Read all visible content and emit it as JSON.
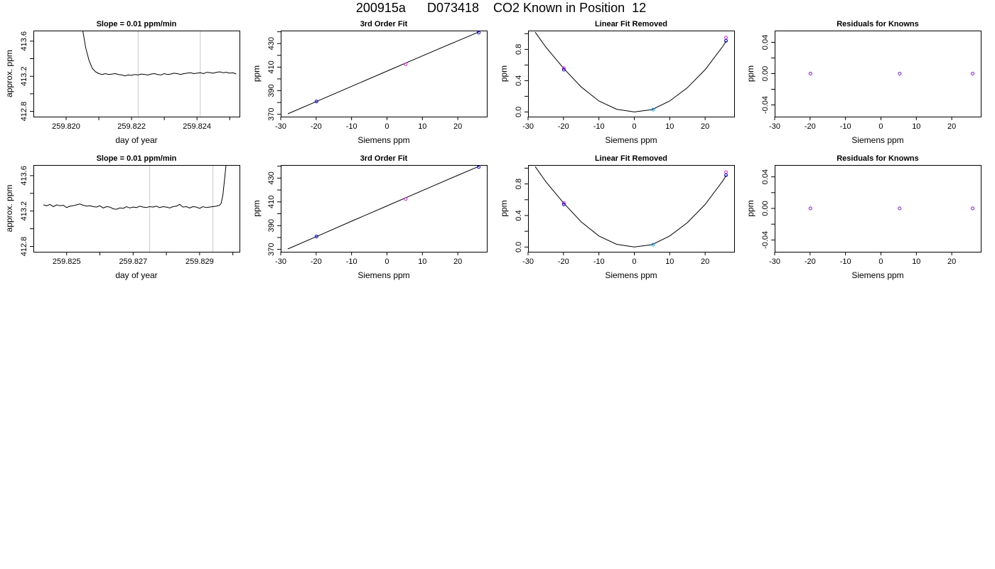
{
  "title": "200915a      D073418    CO2 Known in Position  12",
  "chart_data": [
    {
      "type": "line",
      "title": "Slope =  0.01  ppm/min",
      "xlabel": "day of year",
      "ylabel": "approx. ppm",
      "xlim": [
        259.819,
        259.8253
      ],
      "ylim": [
        412.74,
        413.72
      ],
      "xticks": [
        259.82,
        259.821,
        259.822,
        259.823,
        259.824,
        259.825
      ],
      "xticklabels": [
        "259.820",
        "",
        "259.822",
        "",
        "259.824",
        ""
      ],
      "yticks": [
        412.8,
        413.0,
        413.2,
        413.4,
        413.6
      ],
      "yticklabels": [
        "412.8",
        "",
        "413.2",
        "",
        "413.6"
      ],
      "vlines": [
        259.8222,
        259.8241
      ],
      "series": [
        {
          "x": [
            259.8205,
            259.8206,
            259.8207,
            259.8208,
            259.8209,
            259.821,
            259.82105,
            259.8211,
            259.8212,
            259.8213,
            259.8214,
            259.8215,
            259.8216,
            259.8217,
            259.8218,
            259.8219,
            259.822,
            259.8221,
            259.8222,
            259.8223,
            259.8224,
            259.8225,
            259.8226,
            259.8227,
            259.8228,
            259.8229,
            259.823,
            259.8231,
            259.8232,
            259.8233,
            259.8234,
            259.8235,
            259.8236,
            259.8237,
            259.8238,
            259.8239,
            259.824,
            259.8241,
            259.8242,
            259.8243,
            259.8244,
            259.8245,
            259.8246,
            259.8247,
            259.8248,
            259.8249,
            259.825,
            259.8251,
            259.8252
          ],
          "y": [
            413.74,
            413.52,
            413.38,
            413.29,
            413.25,
            413.23,
            413.225,
            413.22,
            413.23,
            413.22,
            413.225,
            413.23,
            413.22,
            413.215,
            413.205,
            413.215,
            413.21,
            413.22,
            413.215,
            413.225,
            413.22,
            413.215,
            413.225,
            413.23,
            413.22,
            413.215,
            413.23,
            413.22,
            413.225,
            413.235,
            413.23,
            413.22,
            413.23,
            413.235,
            413.24,
            413.23,
            413.235,
            413.24,
            413.23,
            413.245,
            413.24,
            413.235,
            413.245,
            413.25,
            413.24,
            413.245,
            413.235,
            413.24,
            413.225
          ]
        }
      ]
    },
    {
      "type": "scatter",
      "title": "3rd Order Fit",
      "xlabel": "Siemens ppm",
      "ylabel": "ppm",
      "xlim": [
        -30,
        28.2
      ],
      "ylim": [
        368,
        441
      ],
      "xticks": [
        -30,
        -20,
        -10,
        0,
        10,
        20
      ],
      "xticklabels": [
        "-30",
        "-20",
        "-10",
        "0",
        "10",
        "20"
      ],
      "yticks": [
        370,
        380,
        390,
        400,
        410,
        420,
        430,
        440
      ],
      "yticklabels": [
        "370",
        "",
        "390",
        "",
        "410",
        "",
        "430",
        ""
      ],
      "points": [
        {
          "x": -19.9,
          "y": 380.9,
          "color": "#0000cc"
        },
        {
          "x": 5.3,
          "y": 412.4,
          "color": "#dd22dd"
        },
        {
          "x": 25.9,
          "y": 439.3,
          "color": "#0000cc"
        }
      ],
      "curve": {
        "x": [
          -28,
          -20,
          -10,
          0,
          10,
          20,
          26
        ],
        "y": [
          370.4,
          380.7,
          393.7,
          406.6,
          419.5,
          432.3,
          439.9
        ]
      }
    },
    {
      "type": "scatter",
      "title": "Linear Fit Removed",
      "xlabel": "Siemens ppm",
      "ylabel": "ppm",
      "xlim": [
        -30,
        28.2
      ],
      "ylim": [
        -0.06,
        1.04
      ],
      "xticks": [
        -30,
        -20,
        -10,
        0,
        10,
        20
      ],
      "xticklabels": [
        "-30",
        "-20",
        "-10",
        "0",
        "10",
        "20"
      ],
      "yticks": [
        0.0,
        0.2,
        0.4,
        0.6,
        0.8,
        1.0
      ],
      "yticklabels": [
        "0.0",
        "",
        "0.4",
        "",
        "0.8",
        ""
      ],
      "points": [
        {
          "x": -19.9,
          "y": 0.56,
          "color": "#dd22dd"
        },
        {
          "x": -19.9,
          "y": 0.54,
          "color": "#0000cc"
        },
        {
          "x": 5.3,
          "y": 0.03,
          "color": "#00aaff"
        },
        {
          "x": 25.9,
          "y": 0.95,
          "color": "#dd22dd"
        },
        {
          "x": 25.9,
          "y": 0.91,
          "color": "#0000cc"
        }
      ],
      "curve": {
        "x": [
          -28,
          -25,
          -20,
          -15,
          -10,
          -5,
          0,
          5,
          10,
          15,
          20,
          25,
          26
        ],
        "y": [
          1.02,
          0.83,
          0.56,
          0.32,
          0.14,
          0.035,
          0.0,
          0.03,
          0.14,
          0.31,
          0.54,
          0.84,
          0.91
        ]
      }
    },
    {
      "type": "scatter",
      "title": "Residuals for Knowns",
      "xlabel": "Siemens ppm",
      "ylabel": "ppm",
      "xlim": [
        -30,
        28.2
      ],
      "ylim": [
        -0.055,
        0.055
      ],
      "xticks": [
        -30,
        -20,
        -10,
        0,
        10,
        20
      ],
      "xticklabels": [
        "-30",
        "-20",
        "-10",
        "0",
        "10",
        "20"
      ],
      "yticks": [
        -0.04,
        -0.02,
        0.0,
        0.02,
        0.04
      ],
      "yticklabels": [
        "-0.04",
        "",
        "0.00",
        "",
        "0.04"
      ],
      "points": [
        {
          "x": -19.9,
          "y": 0.0,
          "color": "#7722cc"
        },
        {
          "x": 5.3,
          "y": 0.0,
          "color": "#7722cc"
        },
        {
          "x": 25.9,
          "y": 0.0,
          "color": "#7722cc"
        }
      ]
    },
    {
      "type": "line",
      "title": "Slope =  0.01  ppm/min",
      "xlabel": "day of year",
      "ylabel": "approx. ppm",
      "xlim": [
        259.824,
        259.8302
      ],
      "ylim": [
        412.74,
        413.72
      ],
      "xticks": [
        259.825,
        259.826,
        259.827,
        259.828,
        259.829,
        259.83
      ],
      "xticklabels": [
        "259.825",
        "",
        "259.827",
        "",
        "259.829",
        ""
      ],
      "yticks": [
        412.8,
        413.0,
        413.2,
        413.4,
        413.6
      ],
      "yticklabels": [
        "412.8",
        "",
        "413.2",
        "",
        "413.6"
      ],
      "vlines": [
        259.8275,
        259.8294
      ],
      "series": [
        {
          "x": [
            259.8243,
            259.8244,
            259.8245,
            259.8246,
            259.8247,
            259.8248,
            259.8249,
            259.825,
            259.8251,
            259.8252,
            259.8253,
            259.8254,
            259.8255,
            259.8256,
            259.8257,
            259.8258,
            259.8259,
            259.826,
            259.8261,
            259.8262,
            259.8263,
            259.8264,
            259.8265,
            259.8266,
            259.8267,
            259.8268,
            259.8269,
            259.827,
            259.8271,
            259.8272,
            259.8273,
            259.8274,
            259.8275,
            259.8276,
            259.8277,
            259.8278,
            259.8279,
            259.828,
            259.8281,
            259.8282,
            259.8283,
            259.8284,
            259.8285,
            259.8286,
            259.8287,
            259.8288,
            259.8289,
            259.829,
            259.8291,
            259.8292,
            259.8293,
            259.8294,
            259.8295,
            259.8296,
            259.82965,
            259.8297,
            259.82975,
            259.8298
          ],
          "y": [
            413.27,
            413.26,
            413.275,
            413.25,
            413.27,
            413.26,
            413.265,
            413.24,
            413.255,
            413.26,
            413.27,
            413.28,
            413.265,
            413.255,
            413.26,
            413.25,
            413.245,
            413.26,
            413.235,
            413.25,
            413.245,
            413.225,
            413.22,
            413.235,
            413.23,
            413.25,
            413.235,
            413.245,
            413.24,
            413.255,
            413.245,
            413.24,
            413.25,
            413.245,
            413.255,
            413.24,
            413.25,
            413.245,
            413.235,
            413.25,
            413.255,
            413.275,
            413.245,
            413.25,
            413.235,
            413.25,
            413.245,
            413.23,
            413.25,
            413.24,
            413.245,
            413.25,
            413.255,
            413.265,
            413.29,
            413.38,
            413.56,
            413.74
          ]
        }
      ]
    },
    {
      "type": "scatter",
      "title": "3rd Order Fit",
      "xlabel": "Siemens ppm",
      "ylabel": "ppm",
      "xlim": [
        -30,
        28.2
      ],
      "ylim": [
        368,
        441
      ],
      "xticks": [
        -30,
        -20,
        -10,
        0,
        10,
        20
      ],
      "xticklabels": [
        "-30",
        "-20",
        "-10",
        "0",
        "10",
        "20"
      ],
      "yticks": [
        370,
        380,
        390,
        400,
        410,
        420,
        430,
        440
      ],
      "yticklabels": [
        "370",
        "",
        "390",
        "",
        "410",
        "",
        "430",
        ""
      ],
      "points": [
        {
          "x": -19.9,
          "y": 380.9,
          "color": "#0000cc"
        },
        {
          "x": 5.3,
          "y": 412.4,
          "color": "#dd22dd"
        },
        {
          "x": 25.9,
          "y": 439.3,
          "color": "#0000cc"
        }
      ],
      "curve": {
        "x": [
          -28,
          -20,
          -10,
          0,
          10,
          20,
          26
        ],
        "y": [
          370.4,
          380.7,
          393.7,
          406.6,
          419.5,
          432.3,
          439.9
        ]
      }
    },
    {
      "type": "scatter",
      "title": "Linear Fit Removed",
      "xlabel": "Siemens ppm",
      "ylabel": "ppm",
      "xlim": [
        -30,
        28.2
      ],
      "ylim": [
        -0.06,
        1.04
      ],
      "xticks": [
        -30,
        -20,
        -10,
        0,
        10,
        20
      ],
      "xticklabels": [
        "-30",
        "-20",
        "-10",
        "0",
        "10",
        "20"
      ],
      "yticks": [
        0.0,
        0.2,
        0.4,
        0.6,
        0.8,
        1.0
      ],
      "yticklabels": [
        "0.0",
        "",
        "0.4",
        "",
        "0.8",
        ""
      ],
      "points": [
        {
          "x": -19.9,
          "y": 0.56,
          "color": "#dd22dd"
        },
        {
          "x": -19.9,
          "y": 0.54,
          "color": "#0000cc"
        },
        {
          "x": 5.3,
          "y": 0.03,
          "color": "#00aaff"
        },
        {
          "x": 25.9,
          "y": 0.95,
          "color": "#dd22dd"
        },
        {
          "x": 25.9,
          "y": 0.91,
          "color": "#0000cc"
        }
      ],
      "curve": {
        "x": [
          -28,
          -25,
          -20,
          -15,
          -10,
          -5,
          0,
          5,
          10,
          15,
          20,
          25,
          26
        ],
        "y": [
          1.02,
          0.83,
          0.56,
          0.32,
          0.14,
          0.035,
          0.0,
          0.03,
          0.14,
          0.31,
          0.54,
          0.84,
          0.91
        ]
      }
    },
    {
      "type": "scatter",
      "title": "Residuals for Knowns",
      "xlabel": "Siemens ppm",
      "ylabel": "ppm",
      "xlim": [
        -30,
        28.2
      ],
      "ylim": [
        -0.055,
        0.055
      ],
      "xticks": [
        -30,
        -20,
        -10,
        0,
        10,
        20
      ],
      "xticklabels": [
        "-30",
        "-20",
        "-10",
        "0",
        "10",
        "20"
      ],
      "yticks": [
        -0.04,
        -0.02,
        0.0,
        0.02,
        0.04
      ],
      "yticklabels": [
        "-0.04",
        "",
        "0.00",
        "",
        "0.04"
      ],
      "points": [
        {
          "x": -19.9,
          "y": 0.0,
          "color": "#7722cc"
        },
        {
          "x": 5.3,
          "y": 0.0,
          "color": "#7722cc"
        },
        {
          "x": 25.9,
          "y": 0.0,
          "color": "#7722cc"
        }
      ]
    }
  ]
}
